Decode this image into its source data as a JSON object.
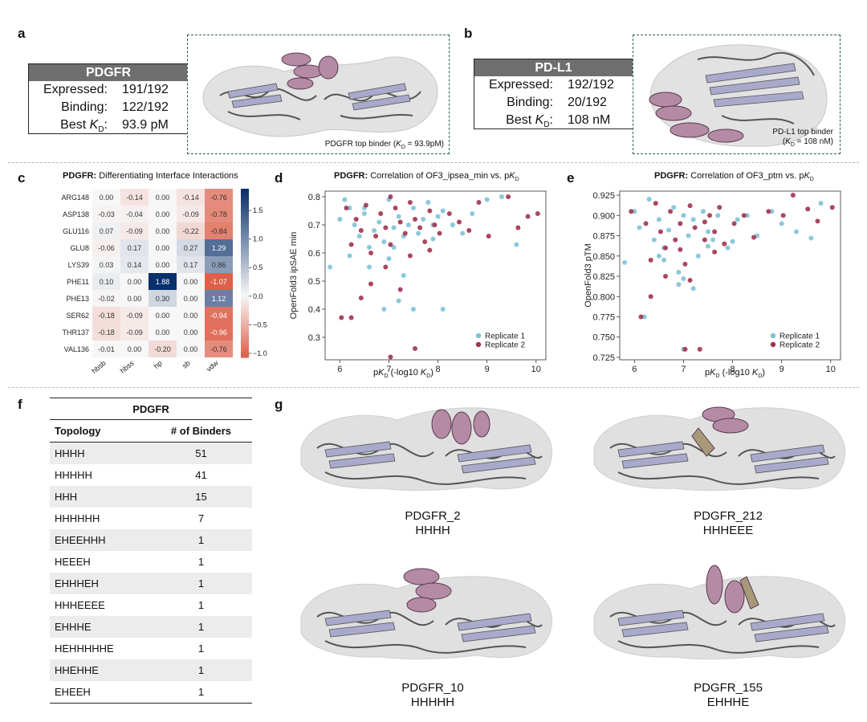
{
  "panels": {
    "a": "a",
    "b": "b",
    "c": "c",
    "d": "d",
    "e": "e",
    "f": "f",
    "g": "g"
  },
  "panel_a": {
    "header": "PDGFR",
    "rows": [
      {
        "key": "Expressed:",
        "value": "191/192"
      },
      {
        "key": "Binding:",
        "value": "122/192"
      },
      {
        "key": "Best",
        "key_italic": "K",
        "key_sub": "D",
        "key_suffix": ":",
        "value": "93.9 pM"
      }
    ],
    "caption_pre": "PDGFR top binder (",
    "caption_K": "K",
    "caption_sub": "D",
    "caption_post": " = 93.9pM)"
  },
  "panel_b": {
    "header": "PD-L1",
    "rows": [
      {
        "key": "Expressed:",
        "value": "192/192"
      },
      {
        "key": "Binding:",
        "value": "20/192"
      },
      {
        "key": "Best",
        "key_italic": "K",
        "key_sub": "D",
        "key_suffix": ":",
        "value": "108 nM"
      }
    ],
    "caption_line1": "PD-L1 top binder",
    "caption_pre": "(",
    "caption_K": "K",
    "caption_sub": "D",
    "caption_post": " = 108 nM)"
  },
  "colors": {
    "helix": "#b48aa4",
    "sheet": "#a9a9cc",
    "surface": "#dcdcdc",
    "backbone": "#555555",
    "beige": "#a89a78",
    "rep1": "#7fc2d8",
    "rep2": "#a0334f"
  },
  "chart_data": [
    {
      "id": "c",
      "type": "heatmap",
      "title_bold": "PDGFR:",
      "title_rest": " Differentiating Interface Interactions",
      "rows": [
        "ARG148",
        "ASP138",
        "GLU116",
        "GLU8",
        "LYS39",
        "PHE11",
        "PHE13",
        "SER62",
        "THR137",
        "VAL136"
      ],
      "cols": [
        "hbsb",
        "hbss",
        "hp",
        "sb",
        "vdw"
      ],
      "values": [
        [
          "0.00",
          "-0.14",
          "0.00",
          "-0.14",
          "-0.76"
        ],
        [
          "-0.03",
          "-0.04",
          "0.00",
          "-0.09",
          "-0.78"
        ],
        [
          "0.07",
          "-0.09",
          "0.00",
          "-0.22",
          "-0.84"
        ],
        [
          "-0.06",
          "0.17",
          "0.00",
          "0.27",
          "1.29"
        ],
        [
          "0.03",
          "0.14",
          "0.00",
          "0.17",
          "0.86"
        ],
        [
          "0.10",
          "0.00",
          "1.88",
          "0.00",
          "-1.07"
        ],
        [
          "-0.02",
          "0.00",
          "0.30",
          "0.00",
          "1.12"
        ],
        [
          "-0.18",
          "-0.09",
          "0.00",
          "0.00",
          "-0.94"
        ],
        [
          "-0.18",
          "-0.09",
          "0.00",
          "0.00",
          "-0.96"
        ],
        [
          "-0.01",
          "0.00",
          "-0.20",
          "0.00",
          "-0.76"
        ]
      ],
      "colorbar_ticks": [
        "1.5",
        "1.0",
        "0.5",
        "0.0",
        "−0.5",
        "−1.0"
      ],
      "colorbar_tick_values": [
        1.5,
        1.0,
        0.5,
        0.0,
        -0.5,
        -1.0
      ],
      "vmin": -1.07,
      "vmax": 1.88
    },
    {
      "id": "d",
      "type": "scatter",
      "title_bold": "PDGFR:",
      "title_rest": " Correlation of OF3_ipsea_min vs. p",
      "title_K": "K",
      "title_sub": "D",
      "ylabel": "OpenFold3 ipSAE min",
      "xlabel_pre": "p",
      "xlabel_K": "K",
      "xlabel_sub": "D",
      "xlabel_mid": " (-log10 ",
      "xlabel_K2": "K",
      "xlabel_sub2": "D",
      "xlabel_post": ")",
      "xlim": [
        5.7,
        10.2
      ],
      "ylim": [
        0.22,
        0.82
      ],
      "xticks": [
        6,
        7,
        8,
        9,
        10
      ],
      "xtick_labels": [
        "6",
        "7",
        "8",
        "9",
        "10"
      ],
      "yticks": [
        0.3,
        0.4,
        0.5,
        0.6,
        0.7,
        0.8
      ],
      "ytick_labels": [
        "0.3",
        "0.4",
        "0.5",
        "0.6",
        "0.7",
        "0.8"
      ],
      "legend": [
        "Replicate 1",
        "Replicate 2"
      ],
      "series": [
        {
          "name": "Replicate 1",
          "points": [
            [
              5.8,
              0.55
            ],
            [
              6.0,
              0.72
            ],
            [
              6.1,
              0.79
            ],
            [
              6.2,
              0.76
            ],
            [
              6.3,
              0.7
            ],
            [
              6.4,
              0.66
            ],
            [
              6.5,
              0.74
            ],
            [
              6.6,
              0.62
            ],
            [
              6.7,
              0.68
            ],
            [
              6.8,
              0.71
            ],
            [
              6.9,
              0.64
            ],
            [
              7.0,
              0.79
            ],
            [
              7.0,
              0.58
            ],
            [
              7.1,
              0.69
            ],
            [
              7.2,
              0.73
            ],
            [
              7.2,
              0.43
            ],
            [
              7.3,
              0.66
            ],
            [
              7.4,
              0.7
            ],
            [
              7.5,
              0.76
            ],
            [
              7.6,
              0.67
            ],
            [
              7.7,
              0.72
            ],
            [
              7.8,
              0.78
            ],
            [
              7.9,
              0.65
            ],
            [
              8.0,
              0.73
            ],
            [
              8.1,
              0.75
            ],
            [
              8.3,
              0.7
            ],
            [
              8.5,
              0.67
            ],
            [
              8.7,
              0.74
            ],
            [
              9.0,
              0.79
            ],
            [
              9.3,
              0.8
            ],
            [
              9.6,
              0.63
            ],
            [
              6.9,
              0.4
            ],
            [
              7.5,
              0.4
            ],
            [
              8.1,
              0.4
            ],
            [
              6.2,
              0.59
            ],
            [
              6.6,
              0.55
            ],
            [
              7.1,
              0.62
            ],
            [
              7.9,
              0.7
            ],
            [
              6.5,
              0.76
            ],
            [
              7.3,
              0.52
            ]
          ]
        },
        {
          "name": "Replicate 2",
          "points": [
            [
              6.0,
              0.37
            ],
            [
              6.1,
              0.76
            ],
            [
              6.2,
              0.63
            ],
            [
              6.3,
              0.72
            ],
            [
              6.4,
              0.68
            ],
            [
              6.5,
              0.77
            ],
            [
              6.6,
              0.6
            ],
            [
              6.7,
              0.66
            ],
            [
              6.8,
              0.74
            ],
            [
              6.9,
              0.69
            ],
            [
              7.0,
              0.63
            ],
            [
              7.0,
              0.23
            ],
            [
              7.1,
              0.76
            ],
            [
              7.2,
              0.71
            ],
            [
              7.3,
              0.67
            ],
            [
              7.4,
              0.78
            ],
            [
              7.5,
              0.26
            ],
            [
              7.5,
              0.72
            ],
            [
              7.6,
              0.69
            ],
            [
              7.7,
              0.64
            ],
            [
              7.8,
              0.75
            ],
            [
              7.9,
              0.7
            ],
            [
              8.0,
              0.67
            ],
            [
              8.2,
              0.74
            ],
            [
              8.4,
              0.71
            ],
            [
              8.6,
              0.68
            ],
            [
              8.8,
              0.78
            ],
            [
              9.0,
              0.66
            ],
            [
              9.4,
              0.8
            ],
            [
              9.6,
              0.69
            ],
            [
              9.8,
              0.73
            ],
            [
              6.6,
              0.49
            ],
            [
              7.2,
              0.47
            ],
            [
              6.4,
              0.44
            ],
            [
              7.8,
              0.61
            ],
            [
              6.9,
              0.55
            ],
            [
              7.4,
              0.59
            ],
            [
              6.2,
              0.37
            ],
            [
              10.0,
              0.74
            ],
            [
              7.0,
              0.8
            ]
          ]
        }
      ]
    },
    {
      "id": "e",
      "type": "scatter",
      "title_bold": "PDGFR:",
      "title_rest": " Correlation of OF3_ptm vs. p",
      "title_K": "K",
      "title_sub": "D",
      "ylabel": "OpenFold3 pTM",
      "xlabel_pre": "p",
      "xlabel_K": "K",
      "xlabel_sub": "D",
      "xlabel_mid": " (-log10 ",
      "xlabel_K2": "K",
      "xlabel_sub2": "D",
      "xlabel_post": ")",
      "xlim": [
        5.7,
        10.2
      ],
      "ylim": [
        0.722,
        0.93
      ],
      "xticks": [
        6,
        7,
        8,
        9,
        10
      ],
      "xtick_labels": [
        "6",
        "7",
        "8",
        "9",
        "10"
      ],
      "yticks": [
        0.725,
        0.75,
        0.775,
        0.8,
        0.825,
        0.85,
        0.875,
        0.9,
        0.925
      ],
      "ytick_labels": [
        "0.725",
        "0.750",
        "0.775",
        "0.800",
        "0.825",
        "0.850",
        "0.875",
        "0.900",
        "0.925"
      ],
      "legend": [
        "Replicate 1",
        "Replicate 2"
      ],
      "series": [
        {
          "name": "Replicate 1",
          "points": [
            [
              5.8,
              0.842
            ],
            [
              6.0,
              0.905
            ],
            [
              6.1,
              0.885
            ],
            [
              6.2,
              0.775
            ],
            [
              6.3,
              0.92
            ],
            [
              6.4,
              0.87
            ],
            [
              6.5,
              0.895
            ],
            [
              6.6,
              0.86
            ],
            [
              6.7,
              0.882
            ],
            [
              6.8,
              0.91
            ],
            [
              6.9,
              0.83
            ],
            [
              6.9,
              0.815
            ],
            [
              7.0,
              0.9
            ],
            [
              7.0,
              0.822
            ],
            [
              7.1,
              0.875
            ],
            [
              7.2,
              0.895
            ],
            [
              7.3,
              0.85
            ],
            [
              7.4,
              0.905
            ],
            [
              7.5,
              0.88
            ],
            [
              7.6,
              0.87
            ],
            [
              7.7,
              0.9
            ],
            [
              7.9,
              0.86
            ],
            [
              8.1,
              0.895
            ],
            [
              8.3,
              0.9
            ],
            [
              8.5,
              0.875
            ],
            [
              8.8,
              0.905
            ],
            [
              9.0,
              0.89
            ],
            [
              9.3,
              0.88
            ],
            [
              9.6,
              0.872
            ],
            [
              9.8,
              0.915
            ],
            [
              7.0,
              0.735
            ],
            [
              6.6,
              0.845
            ],
            [
              7.2,
              0.81
            ],
            [
              8.0,
              0.868
            ],
            [
              6.5,
              0.85
            ],
            [
              7.5,
              0.862
            ]
          ]
        },
        {
          "name": "Replicate 2",
          "points": [
            [
              5.9,
              0.905
            ],
            [
              6.1,
              0.775
            ],
            [
              6.2,
              0.89
            ],
            [
              6.3,
              0.8
            ],
            [
              6.4,
              0.915
            ],
            [
              6.5,
              0.88
            ],
            [
              6.6,
              0.86
            ],
            [
              6.7,
              0.905
            ],
            [
              6.8,
              0.87
            ],
            [
              6.9,
              0.89
            ],
            [
              7.0,
              0.735
            ],
            [
              7.0,
              0.84
            ],
            [
              7.1,
              0.912
            ],
            [
              7.2,
              0.885
            ],
            [
              7.3,
              0.735
            ],
            [
              7.4,
              0.87
            ],
            [
              7.5,
              0.9
            ],
            [
              7.6,
              0.88
            ],
            [
              7.7,
              0.91
            ],
            [
              7.8,
              0.865
            ],
            [
              8.0,
              0.89
            ],
            [
              8.2,
              0.9
            ],
            [
              8.4,
              0.873
            ],
            [
              8.7,
              0.905
            ],
            [
              9.0,
              0.9
            ],
            [
              9.2,
              0.925
            ],
            [
              9.5,
              0.908
            ],
            [
              9.7,
              0.893
            ],
            [
              10.0,
              0.91
            ],
            [
              6.6,
              0.825
            ],
            [
              7.1,
              0.82
            ],
            [
              6.3,
              0.845
            ],
            [
              7.6,
              0.855
            ],
            [
              6.9,
              0.858
            ],
            [
              7.4,
              0.892
            ]
          ]
        }
      ]
    }
  ],
  "panel_f": {
    "title": "PDGFR",
    "col_topology": "Topology",
    "col_binders": "# of Binders",
    "rows": [
      {
        "topology": "HHHH",
        "binders": "51"
      },
      {
        "topology": "HHHHH",
        "binders": "41"
      },
      {
        "topology": "HHH",
        "binders": "15"
      },
      {
        "topology": "HHHHHH",
        "binders": "7"
      },
      {
        "topology": "EHEEHHH",
        "binders": "1"
      },
      {
        "topology": "HEEEH",
        "binders": "1"
      },
      {
        "topology": "EHHHEH",
        "binders": "1"
      },
      {
        "topology": "HHHEEEE",
        "binders": "1"
      },
      {
        "topology": "EHHHE",
        "binders": "1"
      },
      {
        "topology": "HEHHHHHE",
        "binders": "1"
      },
      {
        "topology": "HHEHHE",
        "binders": "1"
      },
      {
        "topology": "EHEEH",
        "binders": "1"
      }
    ]
  },
  "panel_g": {
    "structures": [
      {
        "name": "PDGFR_2",
        "topology": "HHHH"
      },
      {
        "name": "PDGFR_212",
        "topology": "HHHEEE"
      },
      {
        "name": "PDGFR_10",
        "topology": "HHHHH"
      },
      {
        "name": "PDGFR_155",
        "topology": "EHHHE"
      }
    ]
  }
}
